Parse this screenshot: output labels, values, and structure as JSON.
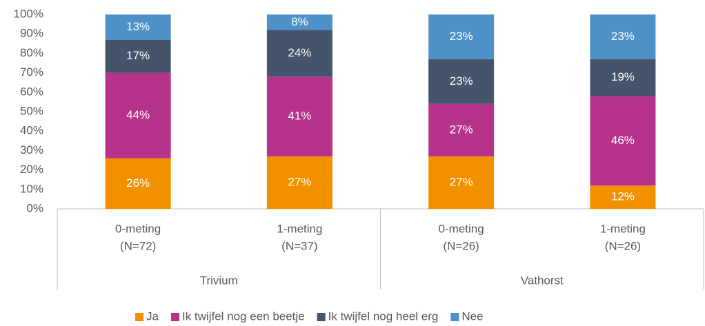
{
  "chart_data": {
    "type": "stacked_bar",
    "categories": [
      [
        "0-meting",
        "(N=72)"
      ],
      [
        "1-meting",
        "(N=37)"
      ],
      [
        "0-meting",
        "(N=26)"
      ],
      [
        "1-meting",
        "(N=26)"
      ]
    ],
    "groups": [
      "Trivium",
      "Vathorst"
    ],
    "series": [
      {
        "name": "Ja",
        "color": "#f29100",
        "values": [
          26,
          27,
          27,
          12
        ],
        "value_labels": [
          "26%",
          "27%",
          "27%",
          "12%"
        ]
      },
      {
        "name": "Ik twijfel nog een beetje",
        "color": "#b5338a",
        "values": [
          44,
          41,
          27,
          46
        ],
        "value_labels": [
          "44%",
          "41%",
          "27%",
          "46%"
        ]
      },
      {
        "name": "Ik twijfel nog heel erg",
        "color": "#44546a",
        "values": [
          17,
          24,
          23,
          19
        ],
        "value_labels": [
          "17%",
          "24%",
          "23%",
          "19%"
        ]
      },
      {
        "name": "Nee",
        "color": "#4e91c8",
        "values": [
          13,
          8,
          23,
          23
        ],
        "value_labels": [
          "13%",
          "8%",
          "23%",
          "23%"
        ]
      }
    ],
    "ylim": [
      0,
      100
    ],
    "yticks": [
      {
        "value": 0,
        "label": "0%"
      },
      {
        "value": 10,
        "label": "10%"
      },
      {
        "value": 20,
        "label": "20%"
      },
      {
        "value": 30,
        "label": "30%"
      },
      {
        "value": 40,
        "label": "40%"
      },
      {
        "value": 50,
        "label": "50%"
      },
      {
        "value": 60,
        "label": "60%"
      },
      {
        "value": 70,
        "label": "70%"
      },
      {
        "value": 80,
        "label": "80%"
      },
      {
        "value": 90,
        "label": "90%"
      },
      {
        "value": 100,
        "label": "100%"
      }
    ],
    "legend": "bottom"
  }
}
